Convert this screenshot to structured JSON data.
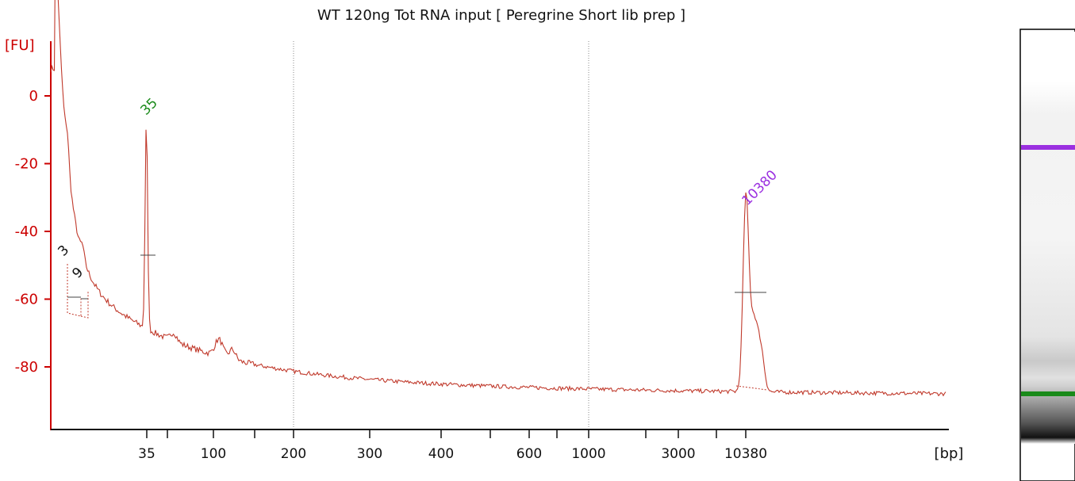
{
  "chart_data": {
    "type": "line",
    "title": "WT 120ng Tot RNA input  [ Peregrine Short lib prep ]",
    "ylabel": "[FU]",
    "xlabel": "[bp]",
    "ylim": [
      -98,
      14
    ],
    "y_ticks": [
      0,
      -20,
      -40,
      -60,
      -80
    ],
    "x_tick_labels": [
      "35",
      "100",
      "200",
      "300",
      "400",
      "600",
      "1000",
      "3000",
      "10380"
    ],
    "reference_lines_at": [
      "200",
      "1000"
    ],
    "trace_color": "#c0392b",
    "axis_color": "#cc0000",
    "peaks": [
      {
        "label": "3",
        "color": "#111111",
        "height": -50
      },
      {
        "label": "9",
        "color": "#111111",
        "height": -56
      },
      {
        "label": "35",
        "color": "#1a8a1a",
        "height": -7
      },
      {
        "label": "10380",
        "color": "#9b30e0",
        "height": -33
      }
    ],
    "gel_lane": {
      "marker_bands": [
        {
          "color": "#9b30e0"
        },
        {
          "color": "#1a8a1a"
        }
      ]
    }
  }
}
